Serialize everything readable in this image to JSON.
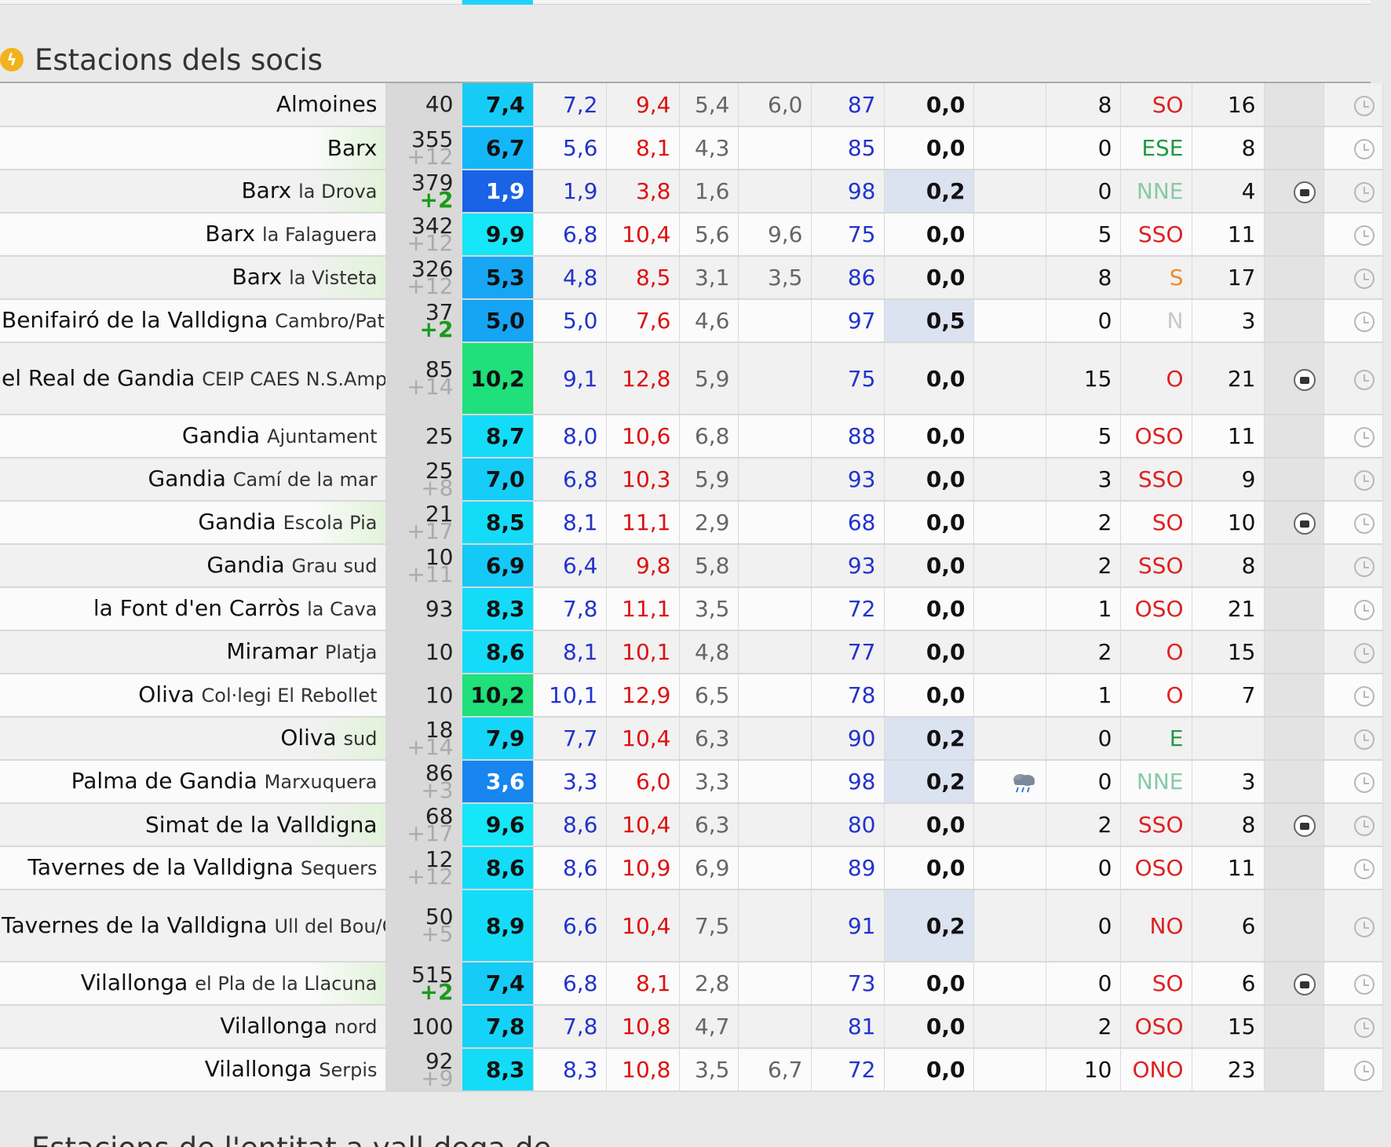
{
  "section": {
    "title": "Estacions dels socis",
    "icon": "bolt-icon"
  },
  "next_section": {
    "title": "Estacions de l'entitat a vall dega de"
  },
  "colors": {
    "cyan": "#1fd2ff",
    "blue": "#1a7ff0",
    "darkblue": "#1060e8",
    "green": "#1edc78",
    "min_text": "#2233cc",
    "max_text": "#dd1111"
  },
  "rows": [
    {
      "place": "Almoines",
      "sub": "",
      "alt": "40",
      "altd": "",
      "t": "7,4",
      "tc": "#16ccf6",
      "mn": "7,2",
      "mx": "9,4",
      "dew": "5,4",
      "x": "6,0",
      "h": "87",
      "r": "0,0",
      "rw": false,
      "w": "8",
      "d": "SO",
      "dc": "red",
      "g": "16",
      "cam": false,
      "tall": false,
      "green": false
    },
    {
      "place": "Barx",
      "sub": "",
      "alt": "355",
      "altd": "+12",
      "t": "6,7",
      "tc": "#13b7f8",
      "mn": "5,6",
      "mx": "8,1",
      "dew": "4,3",
      "x": "",
      "h": "85",
      "r": "0,0",
      "rw": false,
      "w": "0",
      "d": "ESE",
      "dc": "green",
      "g": "8",
      "cam": false,
      "tall": false,
      "green": true
    },
    {
      "place": "Barx",
      "sub": "la Drova",
      "alt": "379",
      "altd": "+2",
      "t": "1,9",
      "tc": "#1a62e6",
      "mn": "1,9",
      "mx": "3,8",
      "dew": "1,6",
      "x": "",
      "h": "98",
      "r": "0,2",
      "rw": true,
      "w": "0",
      "d": "NNE",
      "dc": "lgreen",
      "g": "4",
      "cam": true,
      "tall": false,
      "green": true
    },
    {
      "place": "Barx",
      "sub": "la Falaguera",
      "alt": "342",
      "altd": "+12",
      "t": "9,9",
      "tc": "#15e6f8",
      "mn": "6,8",
      "mx": "10,4",
      "dew": "5,6",
      "x": "9,6",
      "h": "75",
      "r": "0,0",
      "rw": false,
      "w": "5",
      "d": "SSO",
      "dc": "red",
      "g": "11",
      "cam": false,
      "tall": false,
      "green": false
    },
    {
      "place": "Barx",
      "sub": "la Visteta",
      "alt": "326",
      "altd": "+12",
      "t": "5,3",
      "tc": "#17a6f4",
      "mn": "4,8",
      "mx": "8,5",
      "dew": "3,1",
      "x": "3,5",
      "h": "86",
      "r": "0,0",
      "rw": false,
      "w": "8",
      "d": "S",
      "dc": "orange",
      "g": "17",
      "cam": false,
      "tall": false,
      "green": true
    },
    {
      "place": "Benifairó de la Valldigna",
      "sub": "Cambro/Pator",
      "alt": "37",
      "altd": "+2",
      "t": "5,0",
      "tc": "#16a4f4",
      "mn": "5,0",
      "mx": "7,6",
      "dew": "4,6",
      "x": "",
      "h": "97",
      "r": "0,5",
      "rw": true,
      "w": "0",
      "d": "N",
      "dc": "grey",
      "g": "3",
      "cam": false,
      "tall": false,
      "green": false
    },
    {
      "place": "el Real de Gandia",
      "sub": "CEIP CAES N.S.Amparo",
      "alt": "85",
      "altd": "+14",
      "t": "10,2",
      "tc": "#1fe07a",
      "mn": "9,1",
      "mx": "12,8",
      "dew": "5,9",
      "x": "",
      "h": "75",
      "r": "0,0",
      "rw": false,
      "w": "15",
      "d": "O",
      "dc": "red",
      "g": "21",
      "cam": true,
      "tall": true,
      "green": false
    },
    {
      "place": "Gandia",
      "sub": "Ajuntament",
      "alt": "25",
      "altd": "",
      "t": "8,7",
      "tc": "#14dcf8",
      "mn": "8,0",
      "mx": "10,6",
      "dew": "6,8",
      "x": "",
      "h": "88",
      "r": "0,0",
      "rw": false,
      "w": "5",
      "d": "OSO",
      "dc": "red",
      "g": "11",
      "cam": false,
      "tall": false,
      "green": false
    },
    {
      "place": "Gandia",
      "sub": "Camí de la mar",
      "alt": "25",
      "altd": "+8",
      "t": "7,0",
      "tc": "#15cdf7",
      "mn": "6,8",
      "mx": "10,3",
      "dew": "5,9",
      "x": "",
      "h": "93",
      "r": "0,0",
      "rw": false,
      "w": "3",
      "d": "SSO",
      "dc": "red",
      "g": "9",
      "cam": false,
      "tall": false,
      "green": false
    },
    {
      "place": "Gandia",
      "sub": "Escola Pia",
      "alt": "21",
      "altd": "+17",
      "t": "8,5",
      "tc": "#14dcf8",
      "mn": "8,1",
      "mx": "11,1",
      "dew": "2,9",
      "x": "",
      "h": "68",
      "r": "0,0",
      "rw": false,
      "w": "2",
      "d": "SO",
      "dc": "red",
      "g": "10",
      "cam": true,
      "tall": false,
      "green": true
    },
    {
      "place": "Gandia",
      "sub": "Grau sud",
      "alt": "10",
      "altd": "+11",
      "t": "6,9",
      "tc": "#15c9f6",
      "mn": "6,4",
      "mx": "9,8",
      "dew": "5,8",
      "x": "",
      "h": "93",
      "r": "0,0",
      "rw": false,
      "w": "2",
      "d": "SSO",
      "dc": "red",
      "g": "8",
      "cam": false,
      "tall": false,
      "green": false
    },
    {
      "place": "la Font d'en Carròs",
      "sub": "la Cava",
      "alt": "93",
      "altd": "",
      "t": "8,3",
      "tc": "#14dcf8",
      "mn": "7,8",
      "mx": "11,1",
      "dew": "3,5",
      "x": "",
      "h": "72",
      "r": "0,0",
      "rw": false,
      "w": "1",
      "d": "OSO",
      "dc": "red",
      "g": "21",
      "cam": false,
      "tall": false,
      "green": false
    },
    {
      "place": "Miramar",
      "sub": "Platja",
      "alt": "10",
      "altd": "",
      "t": "8,6",
      "tc": "#14dcf8",
      "mn": "8,1",
      "mx": "10,1",
      "dew": "4,8",
      "x": "",
      "h": "77",
      "r": "0,0",
      "rw": false,
      "w": "2",
      "d": "O",
      "dc": "red",
      "g": "15",
      "cam": false,
      "tall": false,
      "green": false
    },
    {
      "place": "Oliva",
      "sub": "Col·legi El Rebollet",
      "alt": "10",
      "altd": "",
      "t": "10,2",
      "tc": "#1fe07a",
      "mn": "10,1",
      "mx": "12,9",
      "dew": "6,5",
      "x": "",
      "h": "78",
      "r": "0,0",
      "rw": false,
      "w": "1",
      "d": "O",
      "dc": "red",
      "g": "7",
      "cam": false,
      "tall": false,
      "green": false
    },
    {
      "place": "Oliva",
      "sub": "sud",
      "alt": "18",
      "altd": "+14",
      "t": "7,9",
      "tc": "#15d6f8",
      "mn": "7,7",
      "mx": "10,4",
      "dew": "6,3",
      "x": "",
      "h": "90",
      "r": "0,2",
      "rw": true,
      "w": "0",
      "d": "E",
      "dc": "green",
      "g": "",
      "cam": false,
      "tall": false,
      "green": true
    },
    {
      "place": "Palma de Gandia",
      "sub": "Marxuquera",
      "alt": "86",
      "altd": "+3",
      "t": "3,6",
      "tc": "#1786ee",
      "mn": "3,3",
      "mx": "6,0",
      "dew": "3,3",
      "x": "",
      "h": "98",
      "r": "0,2",
      "rw": true,
      "w": "0",
      "d": "NNE",
      "dc": "lgreen",
      "g": "3",
      "cam": false,
      "tall": false,
      "green": false,
      "rainicon": true
    },
    {
      "place": "Simat de la Valldigna",
      "sub": "",
      "alt": "68",
      "altd": "+17",
      "t": "9,6",
      "tc": "#15e6f8",
      "mn": "8,6",
      "mx": "10,4",
      "dew": "6,3",
      "x": "",
      "h": "80",
      "r": "0,0",
      "rw": false,
      "w": "2",
      "d": "SSO",
      "dc": "red",
      "g": "8",
      "cam": true,
      "tall": false,
      "green": true
    },
    {
      "place": "Tavernes de la Valldigna",
      "sub": "Sequers",
      "alt": "12",
      "altd": "+12",
      "t": "8,6",
      "tc": "#14dcf8",
      "mn": "8,6",
      "mx": "10,9",
      "dew": "6,9",
      "x": "",
      "h": "89",
      "r": "0,0",
      "rw": false,
      "w": "0",
      "d": "OSO",
      "dc": "red",
      "g": "11",
      "cam": false,
      "tall": false,
      "green": false
    },
    {
      "place": "Tavernes de la Valldigna",
      "sub": "Ull del Bou/Cambro",
      "alt": "50",
      "altd": "+5",
      "t": "8,9",
      "tc": "#14dcf8",
      "mn": "6,6",
      "mx": "10,4",
      "dew": "7,5",
      "x": "",
      "h": "91",
      "r": "0,2",
      "rw": true,
      "w": "0",
      "d": "NO",
      "dc": "red",
      "g": "6",
      "cam": false,
      "tall": true,
      "green": false
    },
    {
      "place": "Vilallonga",
      "sub": "el Pla de la Llacuna",
      "alt": "515",
      "altd": "+2",
      "t": "7,4",
      "tc": "#16ccf6",
      "mn": "6,8",
      "mx": "8,1",
      "dew": "2,8",
      "x": "",
      "h": "73",
      "r": "0,0",
      "rw": false,
      "w": "0",
      "d": "SO",
      "dc": "red",
      "g": "6",
      "cam": true,
      "tall": false,
      "green": true
    },
    {
      "place": "Vilallonga",
      "sub": "nord",
      "alt": "100",
      "altd": "",
      "t": "7,8",
      "tc": "#15d3f8",
      "mn": "7,8",
      "mx": "10,8",
      "dew": "4,7",
      "x": "",
      "h": "81",
      "r": "0,0",
      "rw": false,
      "w": "2",
      "d": "OSO",
      "dc": "red",
      "g": "15",
      "cam": false,
      "tall": false,
      "green": false
    },
    {
      "place": "Vilallonga",
      "sub": "Serpis",
      "alt": "92",
      "altd": "+9",
      "t": "8,3",
      "tc": "#14dcf8",
      "mn": "8,3",
      "mx": "10,8",
      "dew": "3,5",
      "x": "6,7",
      "h": "72",
      "r": "0,0",
      "rw": false,
      "w": "10",
      "d": "ONO",
      "dc": "red",
      "g": "23",
      "cam": false,
      "tall": false,
      "green": false
    }
  ]
}
